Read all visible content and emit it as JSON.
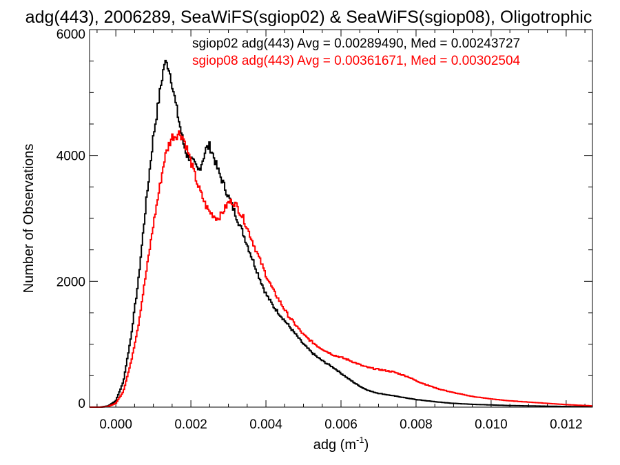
{
  "chart_data": {
    "type": "line",
    "title": "adg(443), 2006289, SeaWiFS(sgiop02) & SeaWiFS(sgiop08), Oligotrophic",
    "xlabel": "adg (m",
    "xlabel_sup": "-1",
    "xlabel_close": ")",
    "ylabel": "Number of Observations",
    "xlim": [
      -0.0007,
      0.0127
    ],
    "ylim": [
      0,
      6000
    ],
    "grid": false,
    "legend_placement": "top-right",
    "xticks": [
      "0.000",
      "0.002",
      "0.004",
      "0.006",
      "0.008",
      "0.010",
      "0.012"
    ],
    "yticks": [
      "0",
      "2000",
      "4000",
      "6000"
    ],
    "x": [
      -0.0007,
      -0.0004,
      -0.0002,
      0.0,
      0.0002,
      0.0004,
      0.0006,
      0.0008,
      0.001,
      0.0012,
      0.0013,
      0.0014,
      0.0015,
      0.0016,
      0.0017,
      0.0018,
      0.0019,
      0.002,
      0.0021,
      0.0022,
      0.0023,
      0.0024,
      0.0025,
      0.0026,
      0.0027,
      0.0028,
      0.0029,
      0.003,
      0.0031,
      0.0032,
      0.0034,
      0.0036,
      0.0038,
      0.004,
      0.0042,
      0.0044,
      0.0046,
      0.0048,
      0.005,
      0.0052,
      0.0054,
      0.0056,
      0.0058,
      0.006,
      0.0062,
      0.0064,
      0.0066,
      0.0068,
      0.007,
      0.0072,
      0.0074,
      0.0076,
      0.0078,
      0.008,
      0.0083,
      0.0086,
      0.009,
      0.0095,
      0.01,
      0.0105,
      0.011,
      0.0115,
      0.012,
      0.0127
    ],
    "series": [
      {
        "name": "sgiop02",
        "legend": "sgiop02 adg(443) Avg = 0.00289490, Med = 0.00243727",
        "color": "#000000",
        "values": [
          0,
          0,
          20,
          100,
          400,
          1100,
          2000,
          3200,
          4300,
          5100,
          5480,
          5430,
          5150,
          4800,
          4500,
          4200,
          4000,
          3950,
          3850,
          3750,
          3900,
          4100,
          4150,
          4000,
          3800,
          3650,
          3500,
          3350,
          3200,
          3050,
          2750,
          2420,
          2100,
          1800,
          1600,
          1450,
          1300,
          1150,
          1000,
          880,
          780,
          700,
          630,
          540,
          450,
          370,
          300,
          250,
          220,
          200,
          180,
          160,
          140,
          120,
          100,
          80,
          60,
          45,
          35,
          25,
          20,
          15,
          10,
          5
        ]
      },
      {
        "name": "sgiop08",
        "legend": "sgiop08 adg(443) Avg = 0.00361671, Med = 0.00302504",
        "color": "#ff0000",
        "values": [
          0,
          0,
          10,
          60,
          250,
          700,
          1300,
          2100,
          2900,
          3600,
          3950,
          4150,
          4300,
          4320,
          4360,
          4280,
          4100,
          3900,
          3700,
          3500,
          3350,
          3200,
          3100,
          3050,
          3000,
          3050,
          3150,
          3250,
          3270,
          3220,
          3000,
          2700,
          2400,
          2100,
          1850,
          1650,
          1450,
          1300,
          1150,
          1050,
          960,
          890,
          830,
          790,
          750,
          700,
          650,
          620,
          600,
          580,
          560,
          520,
          480,
          420,
          350,
          290,
          230,
          170,
          130,
          100,
          80,
          60,
          40,
          20
        ]
      }
    ]
  }
}
